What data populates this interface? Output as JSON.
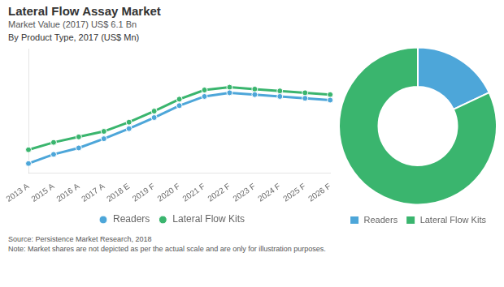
{
  "chart_data": [
    {
      "type": "line",
      "title": "Lateral Flow Assay Market",
      "subtitle": "Market Value (2017) US$ 6.1 Bn",
      "annotations": [
        "By Product Type, 2017 (US$ Mn)",
        "Source: Persistence Market Research, 2018",
        "Note: Market shares are not depicted as per the actual scale and are only for illustration purposes."
      ],
      "categories": [
        "2013 A",
        "2015 A",
        "2016 A",
        "2017 A",
        "2018 E",
        "2019 F",
        "2020 F",
        "2021 F",
        "2022 F",
        "2023 F",
        "2024 F",
        "2025 F",
        "2026 F"
      ],
      "series": [
        {
          "name": "Readers",
          "color": "#4da6d9",
          "marker": "circle",
          "line_style": "solid",
          "values": [
            0.5,
            1.5,
            2.2,
            3.2,
            4.3,
            5.5,
            6.8,
            7.8,
            8.2,
            8.0,
            7.8,
            7.6,
            7.4
          ]
        },
        {
          "name": "Lateral Flow Kits",
          "color": "#3ab56e",
          "marker": "circle",
          "line_style": "solid",
          "values": [
            2.0,
            2.8,
            3.4,
            4.0,
            5.0,
            6.2,
            7.5,
            8.5,
            8.8,
            8.6,
            8.4,
            8.2,
            8.0
          ]
        }
      ],
      "ylim": [
        -0.5,
        13
      ],
      "grid": false,
      "legend": "bottom",
      "tick_labels": "x"
    },
    {
      "type": "doughnut",
      "categories": [
        "Readers",
        "Lateral Flow Kits"
      ],
      "values": [
        0.18,
        0.82
      ],
      "colors": [
        "#4da6d9",
        "#3ab56e"
      ],
      "legend": "bottom"
    }
  ]
}
